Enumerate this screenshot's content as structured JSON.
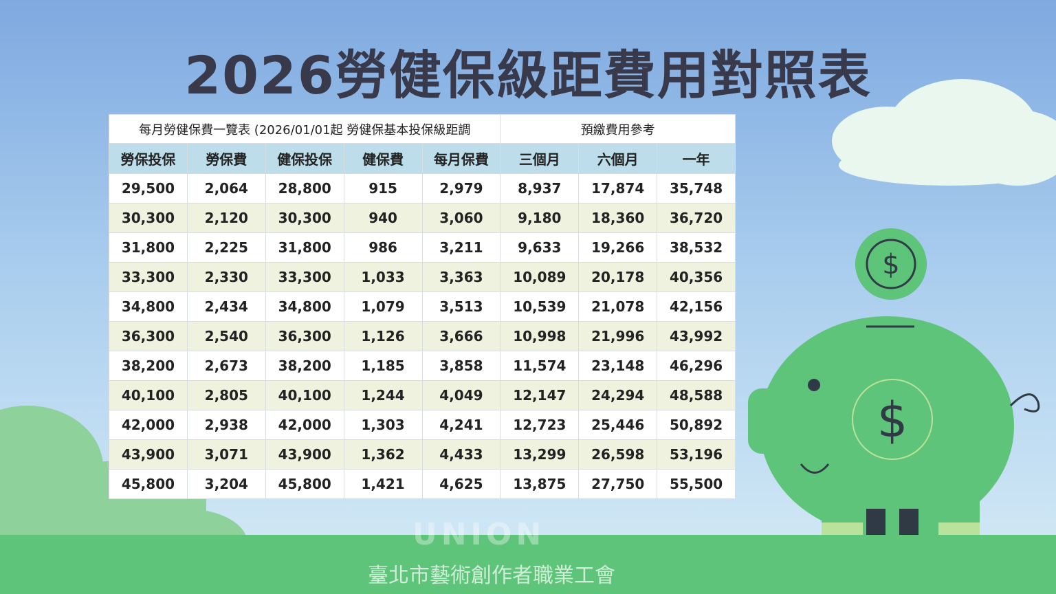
{
  "title": "2026勞健保級距費用對照表",
  "table": {
    "group_headers": [
      "每月勞健保費一覽表 (2026/01/01起 勞健保基本投保級距調",
      "預繳費用參考"
    ],
    "headers": [
      "勞保投保",
      "勞保費",
      "健保投保",
      "健保費",
      "每月保費",
      "三個月",
      "六個月",
      "一年"
    ],
    "rows": [
      [
        "29,500",
        "2,064",
        "28,800",
        "915",
        "2,979",
        "8,937",
        "17,874",
        "35,748"
      ],
      [
        "30,300",
        "2,120",
        "30,300",
        "940",
        "3,060",
        "9,180",
        "18,360",
        "36,720"
      ],
      [
        "31,800",
        "2,225",
        "31,800",
        "986",
        "3,211",
        "9,633",
        "19,266",
        "38,532"
      ],
      [
        "33,300",
        "2,330",
        "33,300",
        "1,033",
        "3,363",
        "10,089",
        "20,178",
        "40,356"
      ],
      [
        "34,800",
        "2,434",
        "34,800",
        "1,079",
        "3,513",
        "10,539",
        "21,078",
        "42,156"
      ],
      [
        "36,300",
        "2,540",
        "36,300",
        "1,126",
        "3,666",
        "10,998",
        "21,996",
        "43,992"
      ],
      [
        "38,200",
        "2,673",
        "38,200",
        "1,185",
        "3,858",
        "11,574",
        "23,148",
        "46,296"
      ],
      [
        "40,100",
        "2,805",
        "40,100",
        "1,244",
        "4,049",
        "12,147",
        "24,294",
        "48,588"
      ],
      [
        "42,000",
        "2,938",
        "42,000",
        "1,303",
        "4,241",
        "12,723",
        "25,446",
        "50,892"
      ],
      [
        "43,900",
        "3,071",
        "43,900",
        "1,362",
        "4,433",
        "13,299",
        "26,598",
        "53,196"
      ],
      [
        "45,800",
        "3,204",
        "45,800",
        "1,421",
        "4,625",
        "13,875",
        "27,750",
        "55,500"
      ]
    ]
  },
  "watermark": "UNION",
  "footer": "臺北市藝術創作者職業工會"
}
